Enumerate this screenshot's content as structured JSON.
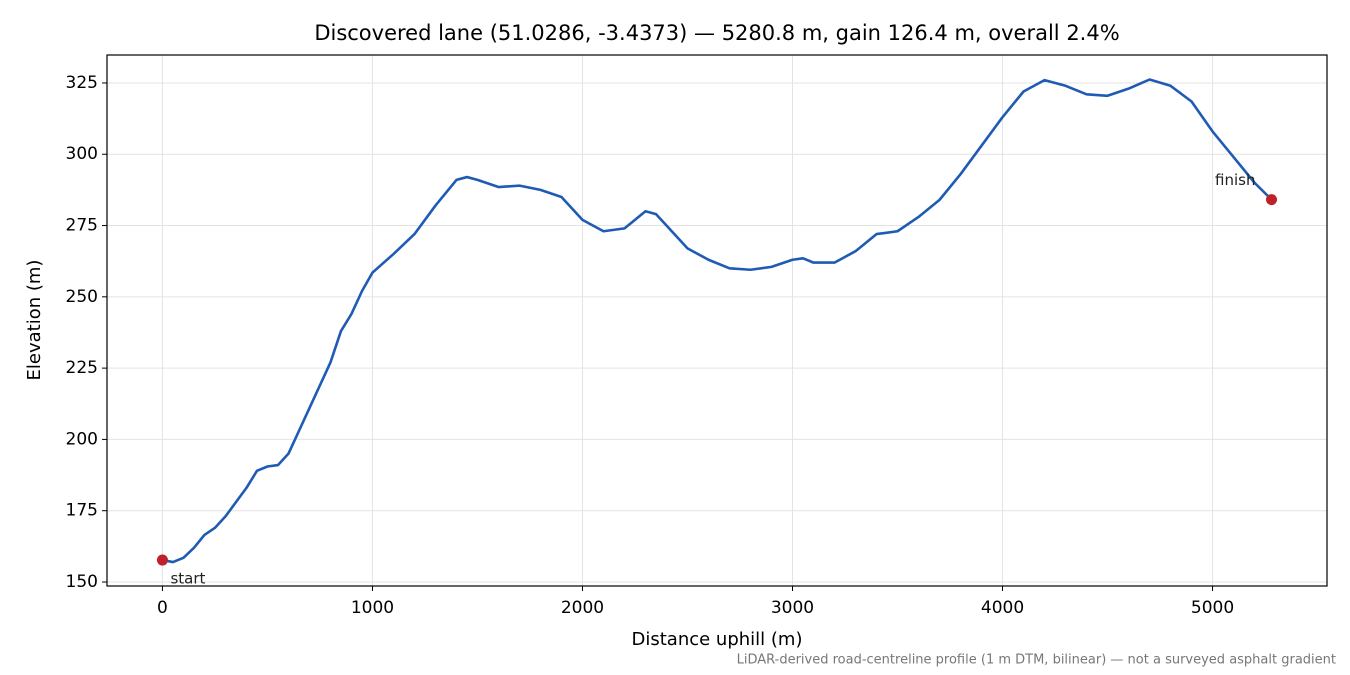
{
  "chart_data": {
    "type": "line",
    "title": "Discovered lane (51.0286, -3.4373) — 5280.8 m, gain 126.4 m, overall 2.4%",
    "x_label": "Distance uphill (m)",
    "y_label": "Elevation (m)",
    "footnote": "LiDAR-derived road-centreline profile (1 m DTM, bilinear) — not a surveyed asphalt gradient",
    "x": [
      0,
      50,
      100,
      150,
      200,
      250,
      300,
      350,
      400,
      450,
      500,
      550,
      600,
      650,
      700,
      750,
      800,
      850,
      900,
      950,
      1000,
      1100,
      1200,
      1300,
      1400,
      1450,
      1500,
      1600,
      1700,
      1800,
      1900,
      2000,
      2100,
      2200,
      2300,
      2350,
      2400,
      2500,
      2600,
      2700,
      2800,
      2900,
      3000,
      3050,
      3100,
      3200,
      3300,
      3400,
      3500,
      3600,
      3700,
      3800,
      3900,
      4000,
      4100,
      4200,
      4300,
      4400,
      4500,
      4600,
      4700,
      4800,
      4900,
      5000,
      5100,
      5200,
      5280.8
    ],
    "series": [
      {
        "color": "#1f5bb5",
        "values": [
          157.7,
          157,
          158.5,
          162,
          166.5,
          169,
          173,
          178,
          183,
          189,
          190.5,
          191,
          195,
          203,
          211,
          219,
          227,
          238,
          244,
          252,
          258.5,
          265,
          272,
          282,
          291,
          292,
          291,
          288.5,
          289,
          287.5,
          285,
          277,
          273,
          274,
          280,
          279,
          275,
          267,
          263,
          260,
          259.5,
          260.5,
          263,
          263.5,
          262,
          262,
          266,
          272,
          273,
          278,
          284,
          293,
          303,
          313,
          322,
          326,
          324,
          321,
          320.5,
          323,
          326.2,
          324,
          318.5,
          308,
          299,
          290,
          284.1
        ]
      }
    ],
    "points": [
      {
        "label": "start",
        "x": 0,
        "y": 157.7,
        "color": "#c0202a"
      },
      {
        "label": "finish",
        "x": 5280.8,
        "y": 284.1,
        "color": "#c0202a"
      }
    ],
    "xlim": [
      -264,
      5545
    ],
    "ylim": [
      148.6,
      334.8
    ],
    "xticks": [
      0,
      1000,
      2000,
      3000,
      4000,
      5000
    ],
    "yticks": [
      150,
      175,
      200,
      225,
      250,
      275,
      300,
      325
    ],
    "grid": true
  }
}
